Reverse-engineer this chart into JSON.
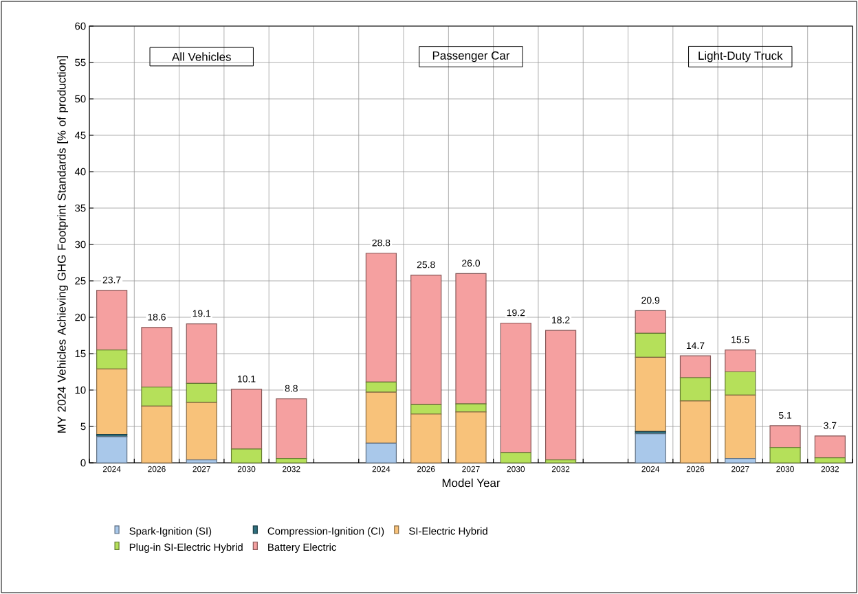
{
  "chart_data": {
    "type": "bar",
    "stacked": true,
    "xlabel": "Model Year",
    "ylabel": "MY 2024 Vehicles Achieving GHG Footprint Standards [% of production]",
    "categories": [
      "2024",
      "2026",
      "2027",
      "2030",
      "2032",
      null,
      "2024",
      "2026",
      "2027",
      "2030",
      "2032",
      null,
      "2024",
      "2026",
      "2027",
      "2030",
      "2032"
    ],
    "series": [
      {
        "name": "Spark-Ignition (SI)",
        "color": "#a9c8ea",
        "values": [
          3.6,
          0,
          0.4,
          0,
          0,
          null,
          2.7,
          0,
          0,
          0,
          0,
          null,
          4.0,
          0,
          0.6,
          0,
          0
        ]
      },
      {
        "name": "Compression-Ignition (CI)",
        "color": "#2f6f7e",
        "values": [
          0.3,
          0,
          0,
          0,
          0,
          null,
          0,
          0,
          0,
          0,
          0,
          null,
          0.3,
          0,
          0,
          0,
          0
        ]
      },
      {
        "name": "SI-Electric Hybrid",
        "color": "#f8c27a",
        "values": [
          9.0,
          7.8,
          7.9,
          0,
          0,
          null,
          7.0,
          6.7,
          7.0,
          0,
          0,
          null,
          10.2,
          8.5,
          8.7,
          0,
          0
        ]
      },
      {
        "name": "Plug-in SI-Electric Hybrid",
        "color": "#b5e05a",
        "values": [
          2.6,
          2.6,
          2.6,
          1.9,
          0.6,
          null,
          1.4,
          1.3,
          1.1,
          1.4,
          0.4,
          null,
          3.3,
          3.2,
          3.2,
          2.1,
          0.7
        ]
      },
      {
        "name": "Battery Electric",
        "color": "#f5a0a0",
        "values": [
          8.2,
          8.2,
          8.2,
          8.2,
          8.2,
          null,
          17.7,
          17.8,
          17.9,
          17.8,
          17.8,
          null,
          3.1,
          3.0,
          3.0,
          3.0,
          3.0
        ]
      }
    ],
    "totals": [
      "23.7",
      "18.6",
      "19.1",
      "10.1",
      "8.8",
      null,
      "28.8",
      "25.8",
      "26.0",
      "19.2",
      "18.2",
      null,
      "20.9",
      "14.7",
      "15.5",
      "5.1",
      "3.7"
    ],
    "annotations": [
      "All Vehicles",
      "Passenger Car",
      "Light-Duty Truck"
    ],
    "ylim": [
      0,
      60
    ],
    "yticks": [
      0,
      5,
      10,
      15,
      20,
      25,
      30,
      35,
      40,
      45,
      50,
      55,
      60
    ],
    "grid": true,
    "legend": "bottom"
  }
}
